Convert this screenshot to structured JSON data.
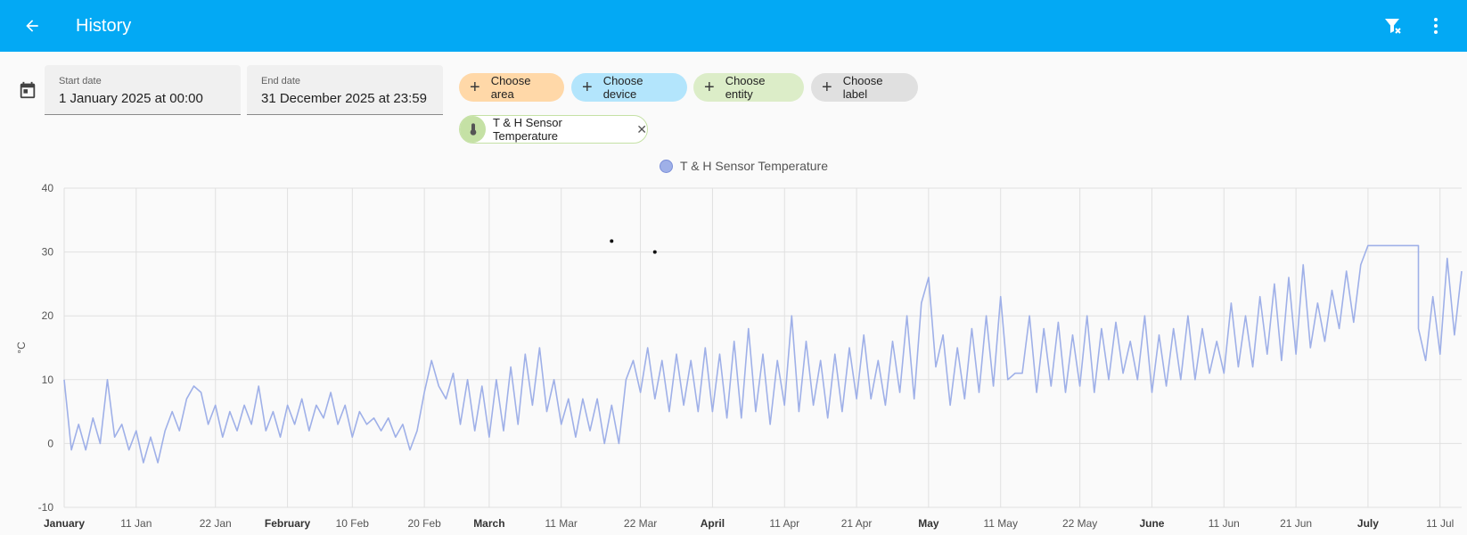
{
  "header": {
    "title": "History",
    "back_icon": "arrow-left-icon",
    "filter_clear_icon": "filter-remove-icon",
    "menu_icon": "dots-vertical-icon"
  },
  "date_range": {
    "icon": "calendar-icon",
    "start_label": "Start date",
    "start_value": "1 January 2025 at 00:00",
    "end_label": "End date",
    "end_value": "31 December 2025 at 23:59"
  },
  "target_chips": [
    {
      "label": "Choose area",
      "color": "#ffd8a8"
    },
    {
      "label": "Choose device",
      "color": "#b3e5fc"
    },
    {
      "label": "Choose entity",
      "color": "#dcedc8"
    },
    {
      "label": "Choose label",
      "color": "#e0e0e0"
    }
  ],
  "selected_entity": {
    "label": "T & H Sensor Temperature",
    "icon": "thermometer-icon",
    "remove_icon": "close-icon"
  },
  "chart_data": {
    "type": "line",
    "legend": [
      {
        "name": "T & H Sensor Temperature",
        "color": "#9fb0e8"
      }
    ],
    "ylabel": "°C",
    "ylim": [
      -10,
      40
    ],
    "yticks": [
      40,
      30,
      20,
      10,
      0,
      -10
    ],
    "xlim": [
      "2025-01-01",
      "2025-07-14"
    ],
    "xticks": [
      {
        "label": "January",
        "date": "2025-01-01",
        "bold": true
      },
      {
        "label": "11 Jan",
        "date": "2025-01-11",
        "bold": false
      },
      {
        "label": "22 Jan",
        "date": "2025-01-22",
        "bold": false
      },
      {
        "label": "February",
        "date": "2025-02-01",
        "bold": true
      },
      {
        "label": "10 Feb",
        "date": "2025-02-10",
        "bold": false
      },
      {
        "label": "20 Feb",
        "date": "2025-02-20",
        "bold": false
      },
      {
        "label": "March",
        "date": "2025-03-01",
        "bold": true
      },
      {
        "label": "11 Mar",
        "date": "2025-03-11",
        "bold": false
      },
      {
        "label": "22 Mar",
        "date": "2025-03-22",
        "bold": false
      },
      {
        "label": "April",
        "date": "2025-04-01",
        "bold": true
      },
      {
        "label": "11 Apr",
        "date": "2025-04-11",
        "bold": false
      },
      {
        "label": "21 Apr",
        "date": "2025-04-21",
        "bold": false
      },
      {
        "label": "May",
        "date": "2025-05-01",
        "bold": true
      },
      {
        "label": "11 May",
        "date": "2025-05-11",
        "bold": false
      },
      {
        "label": "22 May",
        "date": "2025-05-22",
        "bold": false
      },
      {
        "label": "June",
        "date": "2025-06-01",
        "bold": true
      },
      {
        "label": "11 Jun",
        "date": "2025-06-11",
        "bold": false
      },
      {
        "label": "21 Jun",
        "date": "2025-06-21",
        "bold": false
      },
      {
        "label": "July",
        "date": "2025-07-01",
        "bold": true
      },
      {
        "label": "11 Jul",
        "date": "2025-07-11",
        "bold": false
      }
    ],
    "series": [
      {
        "name": "T & H Sensor Temperature",
        "color": "#9fb0e8",
        "points": [
          [
            "2025-01-01",
            10
          ],
          [
            "2025-01-02",
            -1
          ],
          [
            "2025-01-03",
            3
          ],
          [
            "2025-01-04",
            -1
          ],
          [
            "2025-01-05",
            4
          ],
          [
            "2025-01-06",
            0
          ],
          [
            "2025-01-07",
            10
          ],
          [
            "2025-01-08",
            1
          ],
          [
            "2025-01-09",
            3
          ],
          [
            "2025-01-10",
            -1
          ],
          [
            "2025-01-11",
            2
          ],
          [
            "2025-01-12",
            -3
          ],
          [
            "2025-01-13",
            1
          ],
          [
            "2025-01-14",
            -3
          ],
          [
            "2025-01-15",
            2
          ],
          [
            "2025-01-16",
            5
          ],
          [
            "2025-01-17",
            2
          ],
          [
            "2025-01-18",
            7
          ],
          [
            "2025-01-19",
            9
          ],
          [
            "2025-01-20",
            8
          ],
          [
            "2025-01-21",
            3
          ],
          [
            "2025-01-22",
            6
          ],
          [
            "2025-01-23",
            1
          ],
          [
            "2025-01-24",
            5
          ],
          [
            "2025-01-25",
            2
          ],
          [
            "2025-01-26",
            6
          ],
          [
            "2025-01-27",
            3
          ],
          [
            "2025-01-28",
            9
          ],
          [
            "2025-01-29",
            2
          ],
          [
            "2025-01-30",
            5
          ],
          [
            "2025-01-31",
            1
          ],
          [
            "2025-02-01",
            6
          ],
          [
            "2025-02-02",
            3
          ],
          [
            "2025-02-03",
            7
          ],
          [
            "2025-02-04",
            2
          ],
          [
            "2025-02-05",
            6
          ],
          [
            "2025-02-06",
            4
          ],
          [
            "2025-02-07",
            8
          ],
          [
            "2025-02-08",
            3
          ],
          [
            "2025-02-09",
            6
          ],
          [
            "2025-02-10",
            1
          ],
          [
            "2025-02-11",
            5
          ],
          [
            "2025-02-12",
            3
          ],
          [
            "2025-02-13",
            4
          ],
          [
            "2025-02-14",
            2
          ],
          [
            "2025-02-15",
            4
          ],
          [
            "2025-02-16",
            1
          ],
          [
            "2025-02-17",
            3
          ],
          [
            "2025-02-18",
            -1
          ],
          [
            "2025-02-19",
            2
          ],
          [
            "2025-02-20",
            8
          ],
          [
            "2025-02-21",
            13
          ],
          [
            "2025-02-22",
            9
          ],
          [
            "2025-02-23",
            7
          ],
          [
            "2025-02-24",
            11
          ],
          [
            "2025-02-25",
            3
          ],
          [
            "2025-02-26",
            10
          ],
          [
            "2025-02-27",
            2
          ],
          [
            "2025-02-28",
            9
          ],
          [
            "2025-03-01",
            1
          ],
          [
            "2025-03-02",
            10
          ],
          [
            "2025-03-03",
            2
          ],
          [
            "2025-03-04",
            12
          ],
          [
            "2025-03-05",
            3
          ],
          [
            "2025-03-06",
            14
          ],
          [
            "2025-03-07",
            6
          ],
          [
            "2025-03-08",
            15
          ],
          [
            "2025-03-09",
            5
          ],
          [
            "2025-03-10",
            10
          ],
          [
            "2025-03-11",
            3
          ],
          [
            "2025-03-12",
            7
          ],
          [
            "2025-03-13",
            1
          ],
          [
            "2025-03-14",
            7
          ],
          [
            "2025-03-15",
            2
          ],
          [
            "2025-03-16",
            7
          ],
          [
            "2025-03-17",
            0
          ],
          [
            "2025-03-18",
            6
          ],
          [
            "2025-03-19",
            0
          ],
          [
            "2025-03-20",
            10
          ],
          [
            "2025-03-21",
            13
          ],
          [
            "2025-03-22",
            8
          ],
          [
            "2025-03-23",
            15
          ],
          [
            "2025-03-24",
            7
          ],
          [
            "2025-03-25",
            13
          ],
          [
            "2025-03-26",
            5
          ],
          [
            "2025-03-27",
            14
          ],
          [
            "2025-03-28",
            6
          ],
          [
            "2025-03-29",
            13
          ],
          [
            "2025-03-30",
            5
          ],
          [
            "2025-03-31",
            15
          ],
          [
            "2025-04-01",
            5
          ],
          [
            "2025-04-02",
            14
          ],
          [
            "2025-04-03",
            4
          ],
          [
            "2025-04-04",
            16
          ],
          [
            "2025-04-05",
            4
          ],
          [
            "2025-04-06",
            18
          ],
          [
            "2025-04-07",
            5
          ],
          [
            "2025-04-08",
            14
          ],
          [
            "2025-04-09",
            3
          ],
          [
            "2025-04-10",
            13
          ],
          [
            "2025-04-11",
            6
          ],
          [
            "2025-04-12",
            20
          ],
          [
            "2025-04-13",
            5
          ],
          [
            "2025-04-14",
            16
          ],
          [
            "2025-04-15",
            6
          ],
          [
            "2025-04-16",
            13
          ],
          [
            "2025-04-17",
            4
          ],
          [
            "2025-04-18",
            14
          ],
          [
            "2025-04-19",
            5
          ],
          [
            "2025-04-20",
            15
          ],
          [
            "2025-04-21",
            7
          ],
          [
            "2025-04-22",
            17
          ],
          [
            "2025-04-23",
            7
          ],
          [
            "2025-04-24",
            13
          ],
          [
            "2025-04-25",
            6
          ],
          [
            "2025-04-26",
            16
          ],
          [
            "2025-04-27",
            8
          ],
          [
            "2025-04-28",
            20
          ],
          [
            "2025-04-29",
            7
          ],
          [
            "2025-04-30",
            22
          ],
          [
            "2025-05-01",
            26
          ],
          [
            "2025-05-02",
            12
          ],
          [
            "2025-05-03",
            17
          ],
          [
            "2025-05-04",
            6
          ],
          [
            "2025-05-05",
            15
          ],
          [
            "2025-05-06",
            7
          ],
          [
            "2025-05-07",
            18
          ],
          [
            "2025-05-08",
            8
          ],
          [
            "2025-05-09",
            20
          ],
          [
            "2025-05-10",
            9
          ],
          [
            "2025-05-11",
            23
          ],
          [
            "2025-05-12",
            10
          ],
          [
            "2025-05-13",
            11
          ],
          [
            "2025-05-14",
            11
          ],
          [
            "2025-05-15",
            20
          ],
          [
            "2025-05-16",
            8
          ],
          [
            "2025-05-17",
            18
          ],
          [
            "2025-05-18",
            9
          ],
          [
            "2025-05-19",
            19
          ],
          [
            "2025-05-20",
            8
          ],
          [
            "2025-05-21",
            17
          ],
          [
            "2025-05-22",
            9
          ],
          [
            "2025-05-23",
            20
          ],
          [
            "2025-05-24",
            8
          ],
          [
            "2025-05-25",
            18
          ],
          [
            "2025-05-26",
            10
          ],
          [
            "2025-05-27",
            19
          ],
          [
            "2025-05-28",
            11
          ],
          [
            "2025-05-29",
            16
          ],
          [
            "2025-05-30",
            10
          ],
          [
            "2025-05-31",
            20
          ],
          [
            "2025-06-01",
            8
          ],
          [
            "2025-06-02",
            17
          ],
          [
            "2025-06-03",
            9
          ],
          [
            "2025-06-04",
            18
          ],
          [
            "2025-06-05",
            10
          ],
          [
            "2025-06-06",
            20
          ],
          [
            "2025-06-07",
            10
          ],
          [
            "2025-06-08",
            18
          ],
          [
            "2025-06-09",
            11
          ],
          [
            "2025-06-10",
            16
          ],
          [
            "2025-06-11",
            11
          ],
          [
            "2025-06-12",
            22
          ],
          [
            "2025-06-13",
            12
          ],
          [
            "2025-06-14",
            20
          ],
          [
            "2025-06-15",
            12
          ],
          [
            "2025-06-16",
            23
          ],
          [
            "2025-06-17",
            14
          ],
          [
            "2025-06-18",
            25
          ],
          [
            "2025-06-19",
            13
          ],
          [
            "2025-06-20",
            26
          ],
          [
            "2025-06-21",
            14
          ],
          [
            "2025-06-22",
            28
          ],
          [
            "2025-06-23",
            15
          ],
          [
            "2025-06-24",
            22
          ],
          [
            "2025-06-25",
            16
          ],
          [
            "2025-06-26",
            24
          ],
          [
            "2025-06-27",
            18
          ],
          [
            "2025-06-28",
            27
          ],
          [
            "2025-06-29",
            19
          ],
          [
            "2025-06-30",
            28
          ],
          [
            "2025-07-01",
            31
          ],
          [
            "2025-07-08",
            31
          ],
          [
            "2025-07-08",
            18
          ],
          [
            "2025-07-09",
            13
          ],
          [
            "2025-07-10",
            23
          ],
          [
            "2025-07-11",
            14
          ],
          [
            "2025-07-12",
            29
          ],
          [
            "2025-07-13",
            17
          ],
          [
            "2025-07-14",
            27
          ]
        ]
      }
    ],
    "outlier_points": [
      [
        "2025-03-18",
        31.7
      ],
      [
        "2025-03-24",
        30
      ]
    ]
  }
}
